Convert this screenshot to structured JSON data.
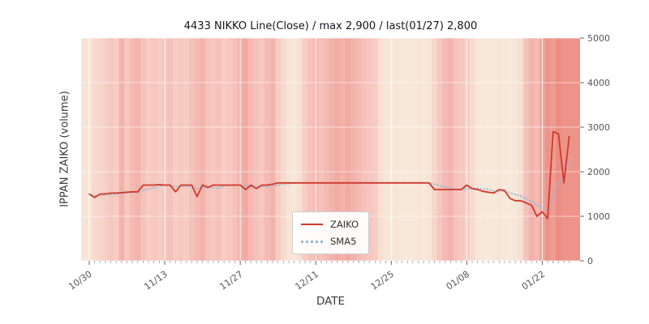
{
  "chart_data": {
    "type": "line",
    "title": "4433 NIKKO Line(Close) / max 2,900 / last(01/27) 2,800",
    "xlabel": "DATE",
    "ylabel": "IPPAN ZAIKO (volume)",
    "ylim": [
      0,
      5000
    ],
    "yticks": [
      0,
      1000,
      2000,
      3000,
      4000,
      5000
    ],
    "xtick_labels": [
      "10/30",
      "11/13",
      "11/27",
      "12/11",
      "12/25",
      "01/08",
      "01/22"
    ],
    "xtick_positions": [
      0,
      14,
      28,
      42,
      56,
      70,
      84
    ],
    "n_points": 90,
    "grid": true,
    "legend": {
      "position": "lower center",
      "entries": [
        {
          "label": "ZAIKO",
          "color": "#d03a2b",
          "style": "solid"
        },
        {
          "label": "SMA5",
          "color": "#93b7d4",
          "style": "dotted"
        }
      ]
    },
    "series": [
      {
        "name": "ZAIKO",
        "values": [
          1500,
          1420,
          1500,
          1500,
          1520,
          1520,
          1530,
          1540,
          1550,
          1550,
          1700,
          1700,
          1700,
          1710,
          1700,
          1700,
          1550,
          1700,
          1700,
          1700,
          1440,
          1700,
          1650,
          1700,
          1700,
          1700,
          1700,
          1700,
          1700,
          1600,
          1700,
          1620,
          1700,
          1700,
          1720,
          1750,
          1750,
          1750,
          1750,
          1750,
          1750,
          1750,
          1750,
          1750,
          1750,
          1750,
          1750,
          1750,
          1750,
          1750,
          1750,
          1750,
          1750,
          1750,
          1750,
          1750,
          1750,
          1750,
          1750,
          1750,
          1750,
          1750,
          1750,
          1750,
          1600,
          1600,
          1600,
          1600,
          1600,
          1600,
          1700,
          1620,
          1600,
          1560,
          1540,
          1520,
          1600,
          1580,
          1400,
          1350,
          1350,
          1300,
          1250,
          1000,
          1100,
          950,
          2900,
          2850,
          1750,
          2800
        ]
      },
      {
        "name": "SMA5",
        "derived_from": "ZAIKO",
        "window": 5
      }
    ],
    "background_heat": [
      0.15,
      0.25,
      0.3,
      0.35,
      0.45,
      0.4,
      0.6,
      0.45,
      0.55,
      0.6,
      0.5,
      0.4,
      0.45,
      0.4,
      0.45,
      0.5,
      0.4,
      0.45,
      0.4,
      0.5,
      0.55,
      0.6,
      0.5,
      0.45,
      0.5,
      0.4,
      0.45,
      0.5,
      0.6,
      0.65,
      0.55,
      0.5,
      0.45,
      0.55,
      0.6,
      0.4,
      0.25,
      0.15,
      0.1,
      0.2,
      0.4,
      0.5,
      0.55,
      0.5,
      0.55,
      0.6,
      0.65,
      0.6,
      0.65,
      0.6,
      0.55,
      0.5,
      0.45,
      0.4,
      0.2,
      0.12,
      0.1,
      0.12,
      0.1,
      0.08,
      0.1,
      0.12,
      0.1,
      0.15,
      0.3,
      0.45,
      0.55,
      0.6,
      0.5,
      0.45,
      0.4,
      0.25,
      0.12,
      0.1,
      0.08,
      0.1,
      0.12,
      0.1,
      0.08,
      0.12,
      0.2,
      0.5,
      0.6,
      0.55,
      0.7,
      0.8,
      0.75,
      0.85,
      0.8,
      0.8
    ],
    "heat_colormap": [
      "#f8f2e1",
      "#f5c2bb",
      "#e7756a"
    ],
    "axis_colors": {
      "tick_label": "#555555",
      "tick_mark": "#666666",
      "grid": "#ffffff"
    }
  }
}
